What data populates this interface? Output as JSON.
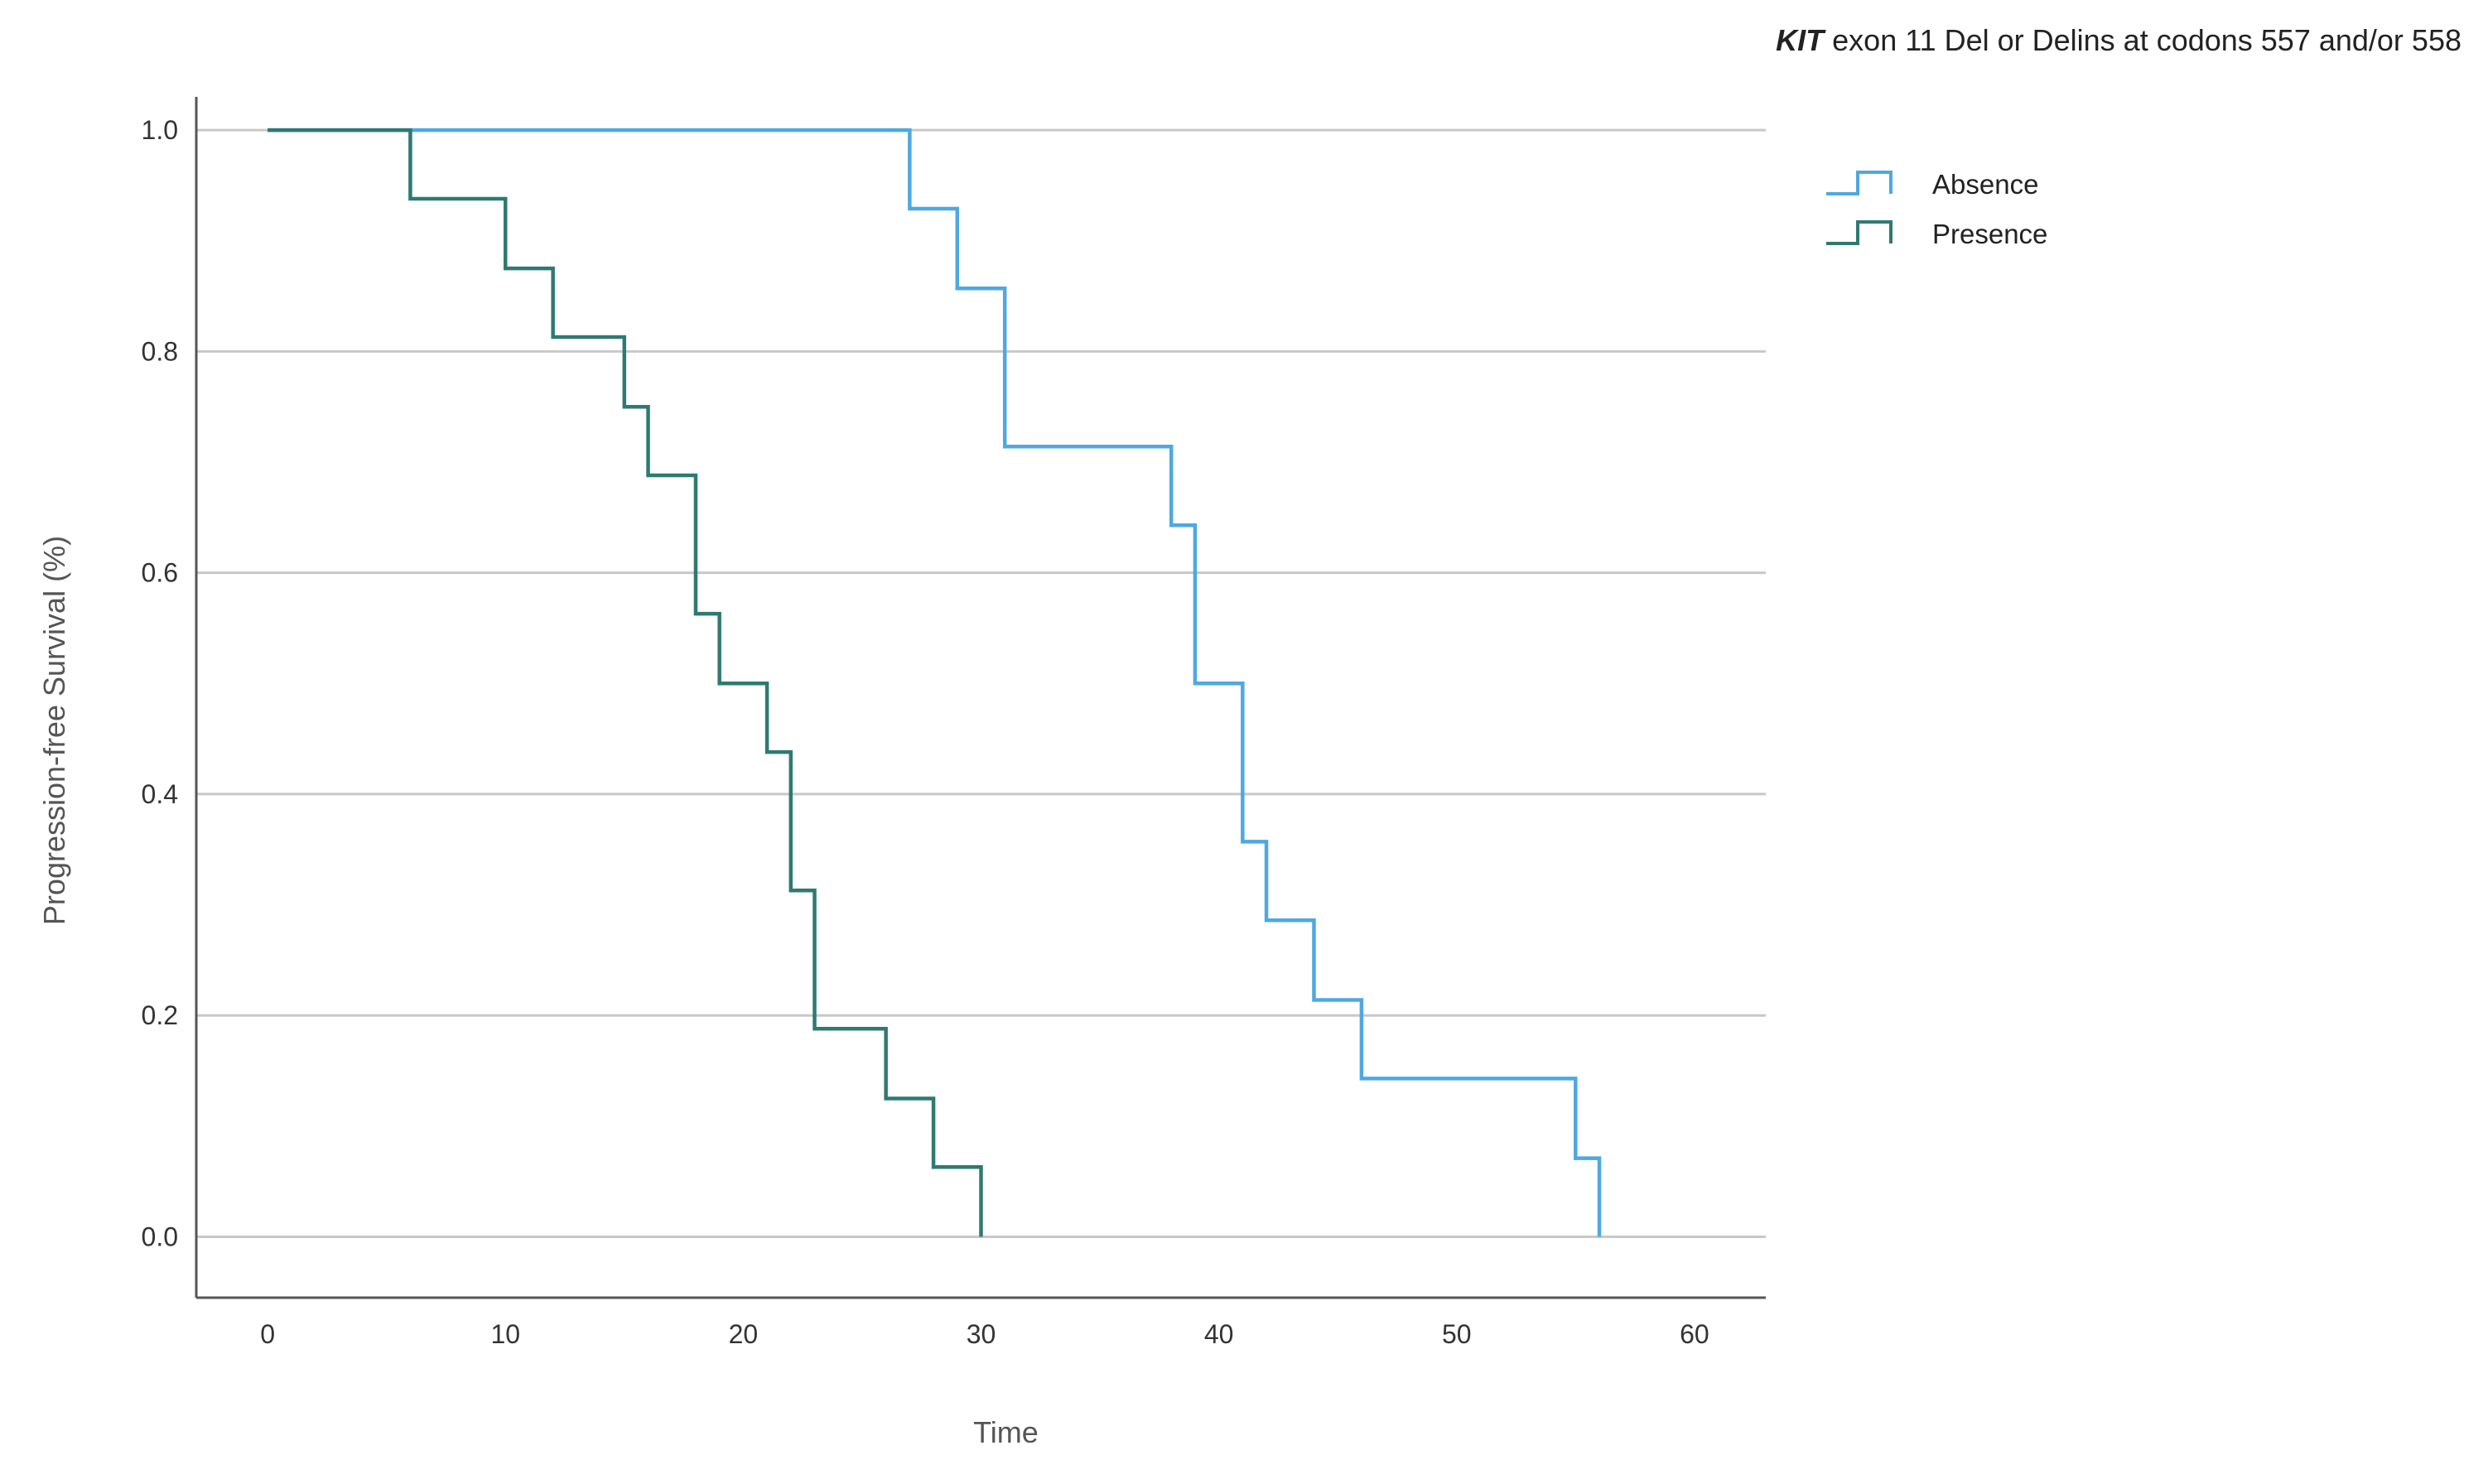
{
  "chart_data": {
    "type": "line",
    "title_gene": "KIT",
    "title_rest": " exon 11 Del or Delins at codons 557 and/or 558",
    "xlabel": "Time",
    "ylabel": "Progression-free Survival (%)",
    "xlim": [
      -3,
      63
    ],
    "ylim": [
      -0.055,
      1.03
    ],
    "xticks": [
      0,
      10,
      20,
      30,
      40,
      50,
      60
    ],
    "xtick_labels": [
      "0",
      "10",
      "20",
      "30",
      "40",
      "50",
      "60"
    ],
    "yticks": [
      0.0,
      0.2,
      0.4,
      0.6,
      0.8,
      1.0
    ],
    "ytick_labels": [
      "0.0",
      "0.2",
      "0.4",
      "0.6",
      "0.8",
      "1.0"
    ],
    "grid": "horizontal",
    "legend_position": "top-right",
    "series": [
      {
        "name": "Absence",
        "color": "#4fa8e0",
        "x": [
          0,
          27,
          29,
          31,
          38,
          39,
          41,
          42,
          44,
          46,
          55,
          56
        ],
        "y": [
          1.0,
          0.929,
          0.857,
          0.714,
          0.643,
          0.5,
          0.357,
          0.286,
          0.214,
          0.143,
          0.071,
          0.0
        ]
      },
      {
        "name": "Presence",
        "color": "#2e7a72",
        "x": [
          0,
          6,
          10,
          12,
          15,
          16,
          18,
          19,
          21,
          22,
          23,
          26,
          28,
          30
        ],
        "y": [
          1.0,
          0.938,
          0.875,
          0.813,
          0.75,
          0.688,
          0.563,
          0.5,
          0.438,
          0.313,
          0.188,
          0.125,
          0.063,
          0.0
        ]
      }
    ]
  }
}
